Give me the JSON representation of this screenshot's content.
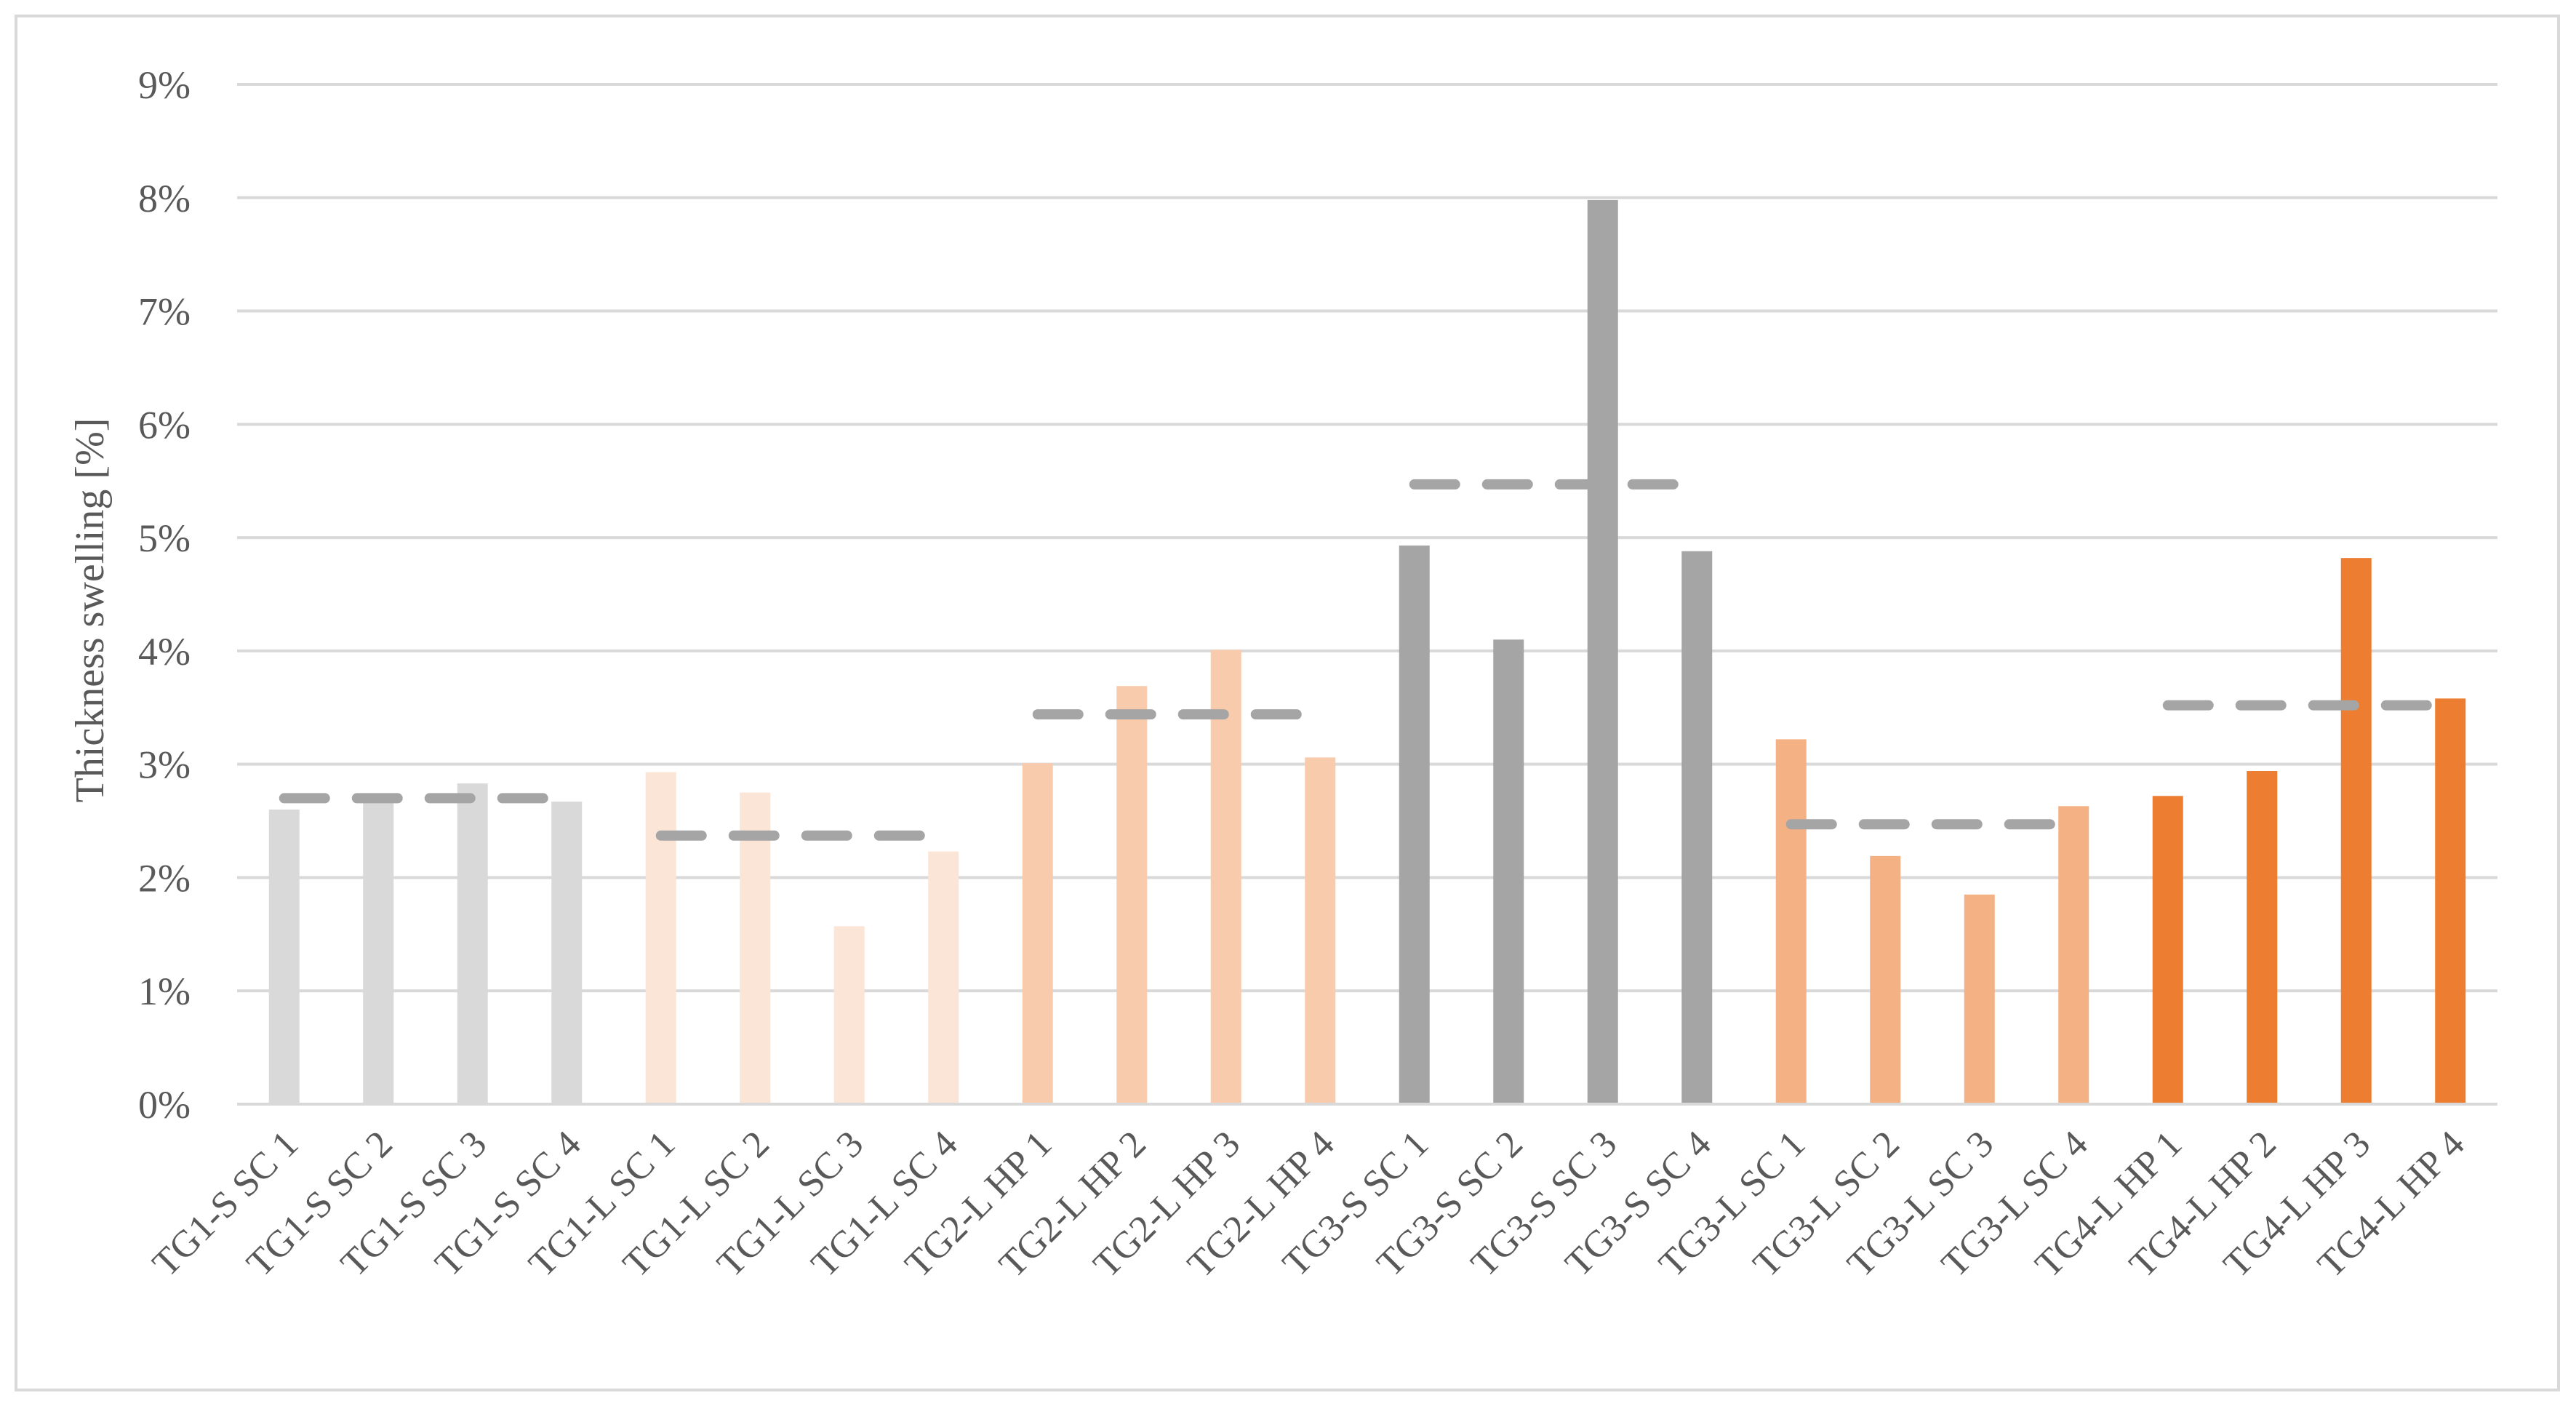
{
  "chart_data": {
    "type": "bar",
    "title": "",
    "xlabel": "",
    "ylabel": "Thickness swelling [%]",
    "ylim": [
      0,
      9
    ],
    "yticks": [
      "0%",
      "1%",
      "2%",
      "3%",
      "4%",
      "5%",
      "6%",
      "7%",
      "8%",
      "9%"
    ],
    "grid": true,
    "legend": "none",
    "categories": [
      "TG1-S SC 1",
      "TG1-S SC 2",
      "TG1-S SC 3",
      "TG1-S SC 4",
      "TG1-L SC 1",
      "TG1-L SC 2",
      "TG1-L SC 3",
      "TG1-L SC 4",
      "TG2-L HP 1",
      "TG2-L HP 2",
      "TG2-L HP 3",
      "TG2-L HP 4",
      "TG3-S SC 1",
      "TG3-S SC 2",
      "TG3-S SC 3",
      "TG3-S SC 4",
      "TG3-L SC 1",
      "TG3-L SC 2",
      "TG3-L SC 3",
      "TG3-L SC 4",
      "TG4-L HP 1",
      "TG4-L HP 2",
      "TG4-L HP 3",
      "TG4-L HP 4"
    ],
    "values": [
      2.6,
      2.7,
      2.83,
      2.67,
      2.93,
      2.75,
      1.57,
      2.23,
      3.01,
      3.69,
      4.01,
      3.06,
      4.93,
      4.1,
      7.98,
      4.88,
      3.22,
      2.19,
      1.85,
      2.63,
      2.72,
      2.94,
      4.82,
      3.58
    ],
    "bar_colors": [
      "#d9d9d9",
      "#d9d9d9",
      "#d9d9d9",
      "#d9d9d9",
      "#fbe5d6",
      "#fbe5d6",
      "#fbe5d6",
      "#fbe5d6",
      "#f8cbad",
      "#f8cbad",
      "#f8cbad",
      "#f8cbad",
      "#a5a5a5",
      "#a5a5a5",
      "#a5a5a5",
      "#a5a5a5",
      "#f4b183",
      "#f4b183",
      "#f4b183",
      "#f4b183",
      "#ed7d31",
      "#ed7d31",
      "#ed7d31",
      "#ed7d31"
    ],
    "group_means": [
      {
        "from": 0,
        "to": 3,
        "value": 2.7
      },
      {
        "from": 4,
        "to": 7,
        "value": 2.37
      },
      {
        "from": 8,
        "to": 11,
        "value": 3.44
      },
      {
        "from": 12,
        "to": 15,
        "value": 5.47
      },
      {
        "from": 16,
        "to": 19,
        "value": 2.47
      },
      {
        "from": 20,
        "to": 23,
        "value": 3.52
      }
    ],
    "mean_line_color": "#a5a5a5",
    "grid_color": "#d9d9d9"
  }
}
